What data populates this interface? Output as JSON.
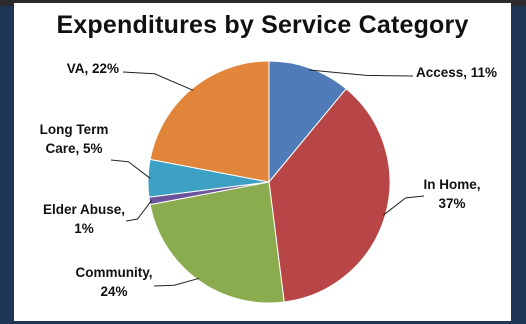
{
  "chart_data": {
    "type": "pie",
    "title": "Expenditures by Service Category",
    "slices": [
      {
        "label": "Access",
        "value": 11,
        "color": "#4f7bb8",
        "text_lines": [
          "Access, 11%"
        ]
      },
      {
        "label": "In Home",
        "value": 37,
        "color": "#b84646",
        "text_lines": [
          "In Home,",
          "37%"
        ]
      },
      {
        "label": "Community",
        "value": 24,
        "color": "#8aab4e",
        "text_lines": [
          "Community,",
          "24%"
        ]
      },
      {
        "label": "Elder Abuse",
        "value": 1,
        "color": "#6b539c",
        "text_lines": [
          "Elder Abuse,",
          "1%"
        ]
      },
      {
        "label": "Long Term Care",
        "value": 5,
        "color": "#3ea0c2",
        "text_lines": [
          "Long Term",
          "Care, 5%"
        ]
      },
      {
        "label": "VA",
        "value": 22,
        "color": "#e0853a",
        "text_lines": [
          "VA, 22%"
        ]
      }
    ]
  }
}
